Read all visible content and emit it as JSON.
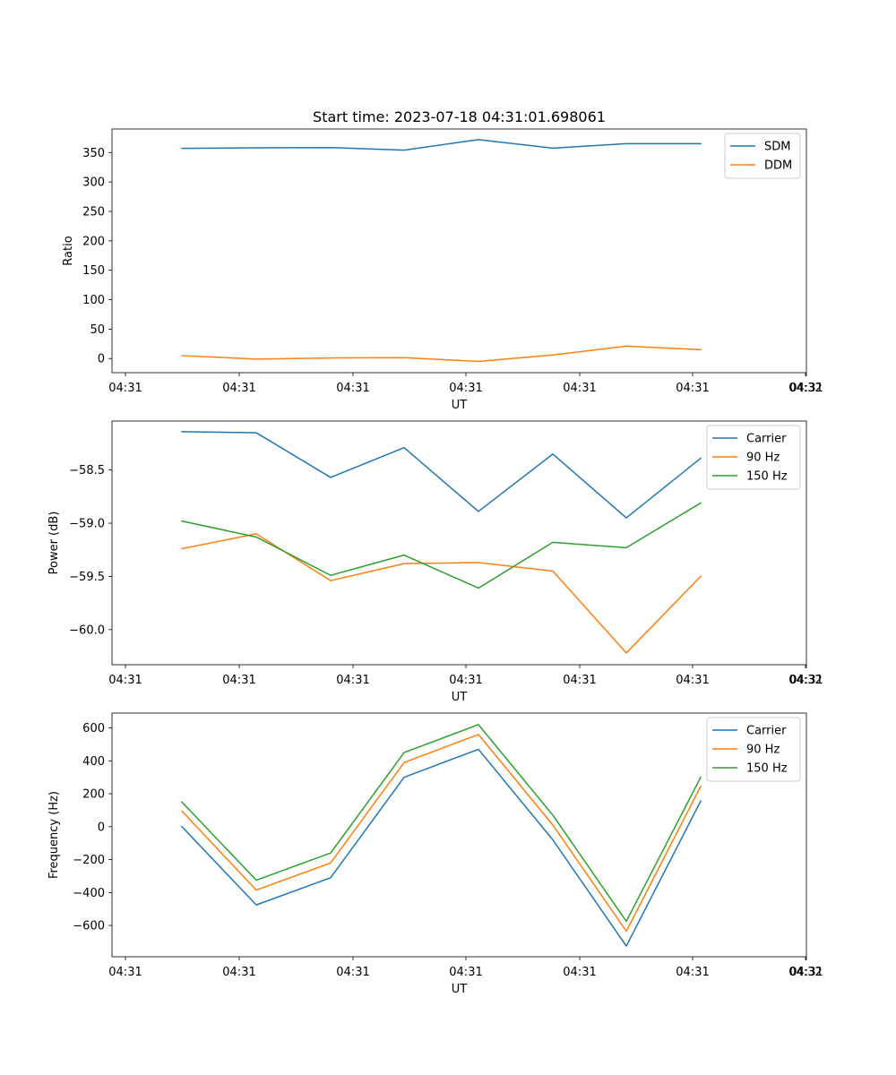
{
  "chart_data": [
    {
      "type": "line",
      "title": "Start time: 2023-07-18 04:31:01.698061",
      "xlabel": "UT",
      "ylabel": "Ratio",
      "ylim": [
        -24,
        390
      ],
      "yticks": [
        0,
        50,
        100,
        150,
        200,
        250,
        300,
        350
      ],
      "xticks": [
        "04:31",
        "04:31",
        "04:31",
        "04:31",
        "04:31",
        "04:31",
        "04:31",
        "04:32"
      ],
      "x": [
        0,
        1,
        2,
        3,
        4,
        5,
        6,
        7
      ],
      "legend_position": "top-right",
      "series": [
        {
          "name": "SDM",
          "color": "#1f77b4",
          "values": [
            357,
            358,
            358.5,
            354,
            372,
            357.5,
            365,
            365
          ]
        },
        {
          "name": "DDM",
          "color": "#ff7f0e",
          "values": [
            5,
            -1,
            1,
            1.5,
            -5,
            6,
            21,
            15
          ]
        }
      ]
    },
    {
      "type": "line",
      "title": "",
      "xlabel": "UT",
      "ylabel": "Power (dB)",
      "ylim": [
        -60.33,
        -58.04
      ],
      "yticks": [
        -60.0,
        -59.5,
        -59.0,
        -58.5
      ],
      "ytick_labels": [
        "−60.0",
        "−59.5",
        "−59.0",
        "−58.5"
      ],
      "xticks": [
        "04:31",
        "04:31",
        "04:31",
        "04:31",
        "04:31",
        "04:31",
        "04:31",
        "04:32"
      ],
      "x": [
        0,
        1,
        2,
        3,
        4,
        5,
        6,
        7
      ],
      "legend_position": "top-right",
      "series": [
        {
          "name": "Carrier",
          "color": "#1f77b4",
          "values": [
            -58.14,
            -58.15,
            -58.57,
            -58.29,
            -58.89,
            -58.35,
            -58.95,
            -58.39
          ]
        },
        {
          "name": "90 Hz",
          "color": "#ff7f0e",
          "values": [
            -59.24,
            -59.1,
            -59.54,
            -59.38,
            -59.37,
            -59.45,
            -60.22,
            -59.5
          ]
        },
        {
          "name": "150 Hz",
          "color": "#2ca02c",
          "values": [
            -58.98,
            -59.13,
            -59.49,
            -59.3,
            -59.61,
            -59.18,
            -59.23,
            -58.81
          ]
        }
      ]
    },
    {
      "type": "line",
      "title": "",
      "xlabel": "UT",
      "ylabel": "Frequency (Hz)",
      "ylim": [
        -790,
        690
      ],
      "yticks": [
        -600,
        -400,
        -200,
        0,
        200,
        400,
        600
      ],
      "ytick_labels": [
        "−600",
        "−400",
        "−200",
        "0",
        "200",
        "400",
        "600"
      ],
      "xticks": [
        "04:31",
        "04:31",
        "04:31",
        "04:31",
        "04:31",
        "04:31",
        "04:31",
        "04:32"
      ],
      "x": [
        0,
        1,
        2,
        3,
        4,
        5,
        6,
        7
      ],
      "legend_position": "top-right",
      "series": [
        {
          "name": "Carrier",
          "color": "#1f77b4",
          "values": [
            0,
            -475,
            -310,
            300,
            470,
            -80,
            -725,
            155
          ]
        },
        {
          "name": "90 Hz",
          "color": "#ff7f0e",
          "values": [
            95,
            -385,
            -220,
            390,
            560,
            10,
            -635,
            245
          ]
        },
        {
          "name": "150 Hz",
          "color": "#2ca02c",
          "values": [
            150,
            -325,
            -160,
            450,
            620,
            70,
            -575,
            300
          ]
        }
      ]
    }
  ]
}
